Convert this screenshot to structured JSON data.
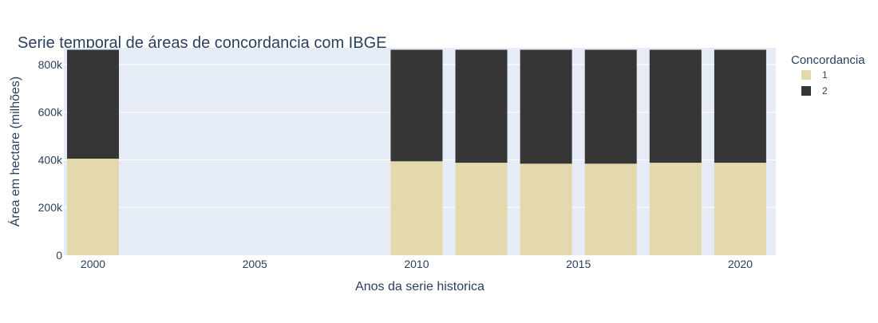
{
  "chart_data": {
    "type": "bar",
    "stacked": true,
    "title": "Serie temporal de áreas de concordancia com IBGE",
    "xlabel": "Anos da serie historica",
    "ylabel": "Área em hectare (milhões)",
    "x": [
      2000,
      2010,
      2012,
      2014,
      2016,
      2018,
      2020
    ],
    "xlim": [
      1999.1,
      2021.1
    ],
    "ylim": [
      0,
      870000
    ],
    "x_ticks": [
      2000,
      2005,
      2010,
      2015,
      2020
    ],
    "x_tick_labels": [
      "2000",
      "2005",
      "2010",
      "2015",
      "2020"
    ],
    "y_ticks": [
      0,
      200000,
      400000,
      600000,
      800000
    ],
    "y_tick_labels": [
      "0",
      "200k",
      "400k",
      "600k",
      "800k"
    ],
    "grid": true,
    "legend": {
      "title": "Concordancia",
      "position": "top-right"
    },
    "series": [
      {
        "name": "1",
        "color": "#e4d9ad",
        "values": [
          405000,
          394000,
          388000,
          384000,
          384000,
          388000,
          388000
        ]
      },
      {
        "name": "2",
        "color": "#363636",
        "values": [
          457000,
          468000,
          474000,
          478000,
          478000,
          474000,
          474000
        ]
      }
    ],
    "plot_background": "#e5ecf6"
  }
}
